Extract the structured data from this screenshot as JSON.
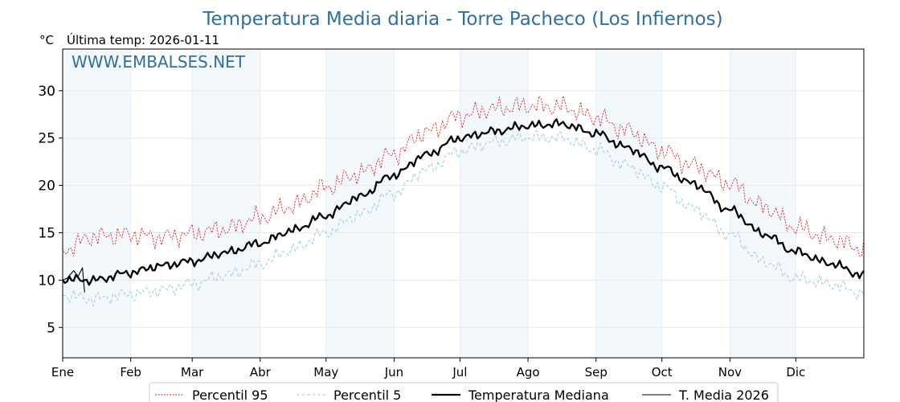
{
  "chart_data": {
    "type": "line",
    "title": "Temperatura Media diaria - Torre Pacheco (Los Infiernos)",
    "unit_label": "°C",
    "subtitle": "Última temp: 2026-01-11",
    "watermark": "WWW.EMBALSES.NET",
    "ylim": [
      1.8,
      34.4
    ],
    "yticks": [
      5,
      10,
      15,
      20,
      25,
      30
    ],
    "xlim": [
      1,
      366
    ],
    "months": [
      {
        "label": "Ene",
        "day": 1
      },
      {
        "label": "Feb",
        "day": 32
      },
      {
        "label": "Mar",
        "day": 60
      },
      {
        "label": "Abr",
        "day": 91
      },
      {
        "label": "May",
        "day": 121
      },
      {
        "label": "Jun",
        "day": 152
      },
      {
        "label": "Jul",
        "day": 182
      },
      {
        "label": "Ago",
        "day": 213
      },
      {
        "label": "Sep",
        "day": 244
      },
      {
        "label": "Oct",
        "day": 274
      },
      {
        "label": "Nov",
        "day": 305
      },
      {
        "label": "Dic",
        "day": 335
      }
    ],
    "shaded_months": [
      "Ene",
      "Mar",
      "May",
      "Jul",
      "Sep",
      "Nov"
    ],
    "grid": true,
    "legend_position": "bottom-center",
    "series": [
      {
        "name": "Percentil 95",
        "color": "#e41a1c",
        "style": "dotted",
        "anchors": [
          [
            1,
            13.2
          ],
          [
            15,
            14.6
          ],
          [
            32,
            14.8
          ],
          [
            45,
            14.5
          ],
          [
            60,
            14.9
          ],
          [
            75,
            15.4
          ],
          [
            91,
            16.6
          ],
          [
            105,
            17.8
          ],
          [
            121,
            19.8
          ],
          [
            135,
            21.2
          ],
          [
            152,
            23.3
          ],
          [
            166,
            25.6
          ],
          [
            182,
            27.3
          ],
          [
            197,
            28.1
          ],
          [
            213,
            28.4
          ],
          [
            228,
            28.3
          ],
          [
            244,
            27.2
          ],
          [
            258,
            25.8
          ],
          [
            274,
            23.7
          ],
          [
            288,
            22.1
          ],
          [
            305,
            20.2
          ],
          [
            320,
            17.8
          ],
          [
            335,
            15.6
          ],
          [
            350,
            14.4
          ],
          [
            366,
            13.3
          ]
        ]
      },
      {
        "name": "Percentil 5",
        "color": "#9fd0e4",
        "style": "dashed",
        "anchors": [
          [
            1,
            8.4
          ],
          [
            15,
            8.0
          ],
          [
            32,
            8.5
          ],
          [
            45,
            8.9
          ],
          [
            60,
            9.6
          ],
          [
            75,
            10.5
          ],
          [
            91,
            11.7
          ],
          [
            105,
            13.2
          ],
          [
            121,
            15.0
          ],
          [
            135,
            16.8
          ],
          [
            152,
            19.2
          ],
          [
            166,
            21.6
          ],
          [
            182,
            23.6
          ],
          [
            197,
            24.6
          ],
          [
            213,
            25.1
          ],
          [
            228,
            25.0
          ],
          [
            244,
            23.8
          ],
          [
            258,
            22.1
          ],
          [
            274,
            19.9
          ],
          [
            288,
            17.6
          ],
          [
            305,
            14.8
          ],
          [
            320,
            12.0
          ],
          [
            335,
            10.2
          ],
          [
            350,
            9.6
          ],
          [
            366,
            8.6
          ]
        ]
      },
      {
        "name": "Temperatura Mediana",
        "color": "#000000",
        "style": "solid-thick",
        "anchors": [
          [
            1,
            10.1
          ],
          [
            15,
            10.0
          ],
          [
            32,
            10.8
          ],
          [
            45,
            11.5
          ],
          [
            60,
            12.0
          ],
          [
            75,
            12.9
          ],
          [
            91,
            13.9
          ],
          [
            105,
            15.2
          ],
          [
            121,
            16.8
          ],
          [
            135,
            18.7
          ],
          [
            152,
            21.1
          ],
          [
            166,
            23.2
          ],
          [
            182,
            25.0
          ],
          [
            197,
            25.7
          ],
          [
            213,
            26.3
          ],
          [
            228,
            26.5
          ],
          [
            244,
            25.5
          ],
          [
            258,
            24.0
          ],
          [
            274,
            21.9
          ],
          [
            288,
            20.2
          ],
          [
            305,
            17.4
          ],
          [
            320,
            14.9
          ],
          [
            335,
            13.0
          ],
          [
            350,
            11.8
          ],
          [
            366,
            10.5
          ]
        ]
      },
      {
        "name": "T. Media 2026",
        "color": "#000000",
        "style": "solid-thin",
        "anchors": [
          [
            1,
            10.0
          ],
          [
            3,
            10.2
          ],
          [
            6,
            11.0
          ],
          [
            8,
            10.4
          ],
          [
            10,
            11.3
          ],
          [
            11,
            8.7
          ]
        ]
      }
    ]
  }
}
